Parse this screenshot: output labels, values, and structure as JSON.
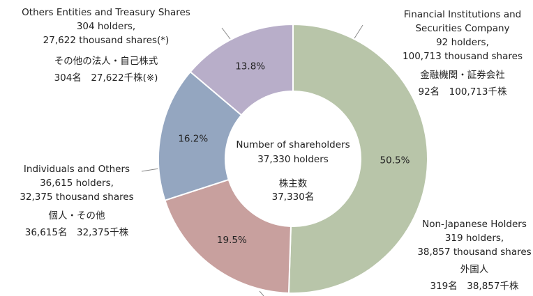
{
  "chart_data": {
    "type": "donut",
    "categories": [
      "Financial Institutions and Securities Company",
      "Non-Japanese Holders",
      "Individuals and Others",
      "Others Entities and Treasury Shares"
    ],
    "values": [
      50.5,
      19.5,
      16.2,
      13.8
    ],
    "value_labels": [
      "50.5%",
      "19.5%",
      "16.2%",
      "13.8%"
    ],
    "colors": [
      "#b8c5a9",
      "#c8a09e",
      "#94a6c0",
      "#b8aec9"
    ],
    "details": [
      [
        "92 holders,",
        "100,713 thousand shares"
      ],
      [
        "319 holders,",
        "38,857 thousand shares"
      ],
      [
        "36,615 holders,",
        "32,375 thousand shares"
      ],
      [
        "304 holders,",
        "27,622 thousand shares(*)"
      ]
    ],
    "details_ja": [
      [
        "金融機関・証券会社",
        "92名　100,713千株"
      ],
      [
        "外国人",
        "319名　38,857千株"
      ],
      [
        "個人・その他",
        "36,615名　32,375千株"
      ],
      [
        "その他の法人・自己株式",
        "304名　27,622千株(※)"
      ]
    ],
    "center_text": [
      "Number of shareholders",
      "37,330 holders"
    ],
    "center_text_ja": [
      "株主数",
      "37,330名"
    ]
  }
}
